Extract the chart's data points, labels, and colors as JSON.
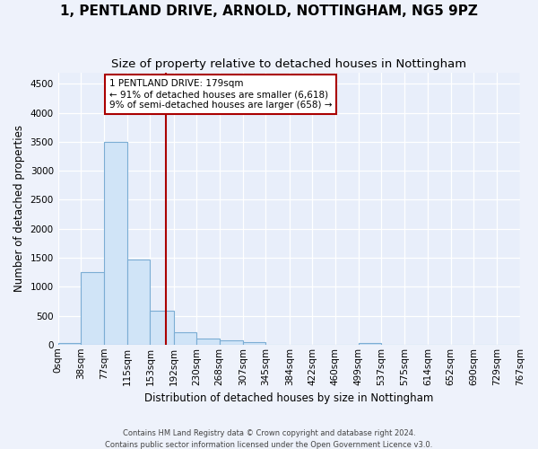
{
  "title": "1, PENTLAND DRIVE, ARNOLD, NOTTINGHAM, NG5 9PZ",
  "subtitle": "Size of property relative to detached houses in Nottingham",
  "xlabel": "Distribution of detached houses by size in Nottingham",
  "ylabel": "Number of detached properties",
  "footer_line1": "Contains HM Land Registry data © Crown copyright and database right 2024.",
  "footer_line2": "Contains public sector information licensed under the Open Government Licence v3.0.",
  "bin_labels": [
    "0sqm",
    "38sqm",
    "77sqm",
    "115sqm",
    "153sqm",
    "192sqm",
    "230sqm",
    "268sqm",
    "307sqm",
    "345sqm",
    "384sqm",
    "422sqm",
    "460sqm",
    "499sqm",
    "537sqm",
    "575sqm",
    "614sqm",
    "652sqm",
    "690sqm",
    "729sqm",
    "767sqm"
  ],
  "bin_edges": [
    0,
    38,
    77,
    115,
    153,
    192,
    230,
    268,
    307,
    345,
    384,
    422,
    460,
    499,
    537,
    575,
    614,
    652,
    690,
    729,
    767
  ],
  "bar_heights": [
    30,
    1250,
    3500,
    1470,
    580,
    220,
    110,
    75,
    50,
    0,
    0,
    0,
    0,
    30,
    0,
    0,
    0,
    0,
    0,
    0
  ],
  "bar_color": "#d0e4f7",
  "bar_edge_color": "#7badd4",
  "property_line_x": 179,
  "property_line_color": "#aa0000",
  "annotation_line1": "1 PENTLAND DRIVE: 179sqm",
  "annotation_line2": "← 91% of detached houses are smaller (6,618)",
  "annotation_line3": "9% of semi-detached houses are larger (658) →",
  "annotation_box_color": "white",
  "annotation_box_edge_color": "#aa0000",
  "ylim": [
    0,
    4700
  ],
  "yticks": [
    0,
    500,
    1000,
    1500,
    2000,
    2500,
    3000,
    3500,
    4000,
    4500
  ],
  "bg_color": "#eef2fb",
  "plot_bg_color": "#e8eefa",
  "grid_color": "#ffffff",
  "title_fontsize": 11,
  "subtitle_fontsize": 9.5,
  "axis_label_fontsize": 8.5,
  "tick_fontsize": 7.5,
  "annotation_fontsize": 7.5,
  "ylabel_fontsize": 8.5
}
